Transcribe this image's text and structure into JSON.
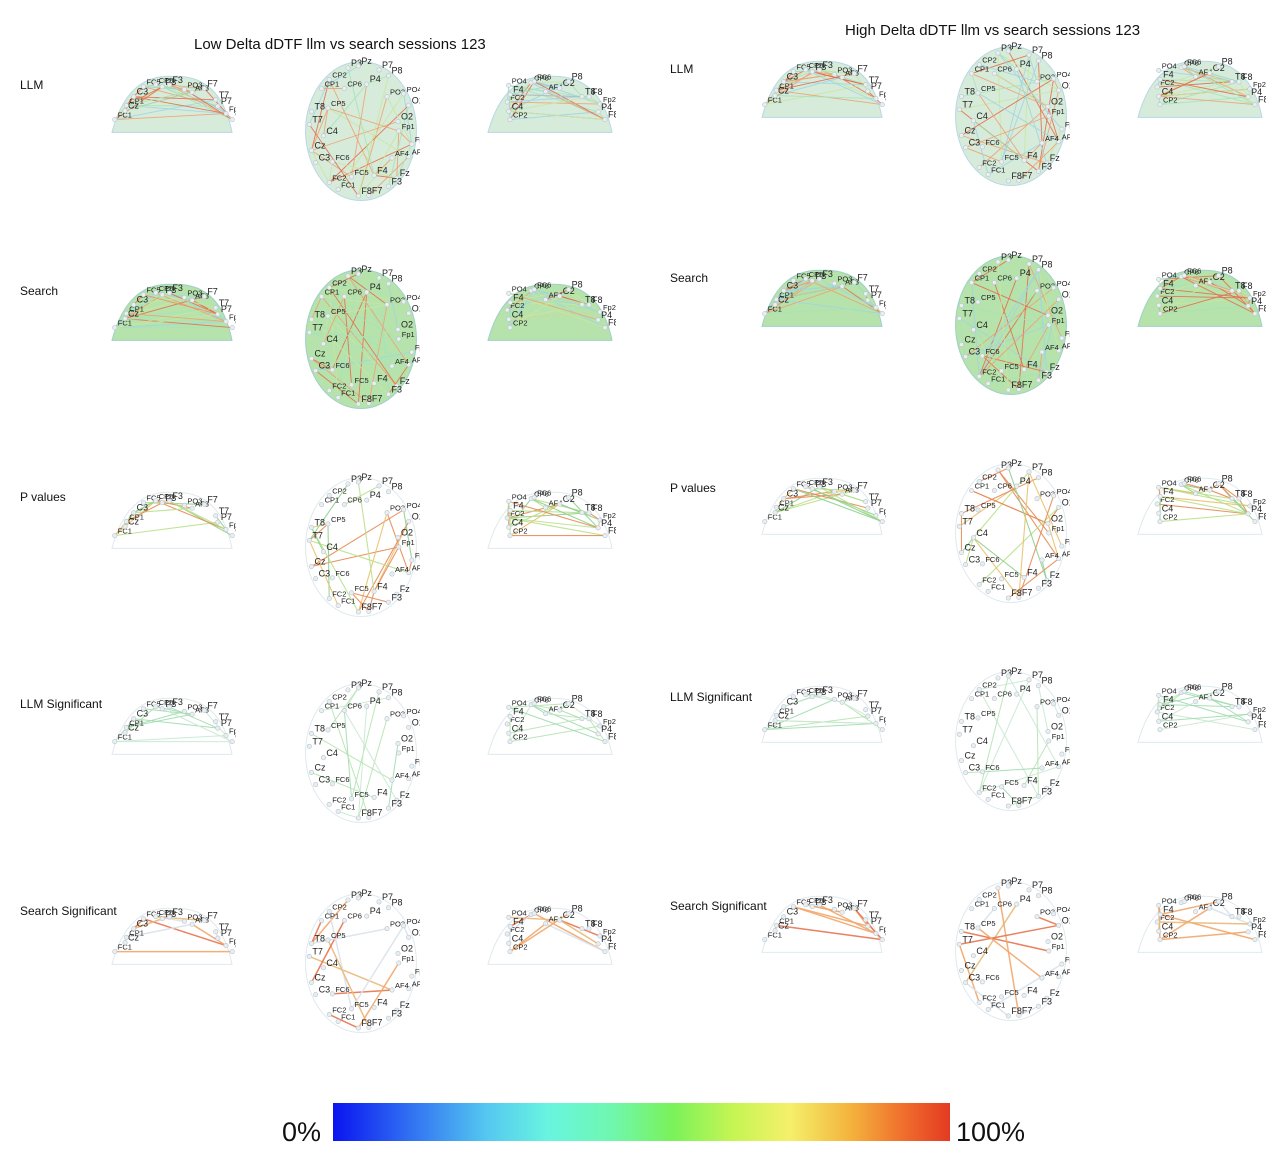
{
  "panels": [
    {
      "title": "Low Delta dDTF llm vs search sessions 123",
      "rows": [
        {
          "label": "LLM",
          "fill": "green-tint",
          "edge_density": "dense"
        },
        {
          "label": "Search",
          "fill": "green",
          "edge_density": "dense"
        },
        {
          "label": "P values",
          "fill": "none",
          "edge_density": "medium"
        },
        {
          "label": "LLM Significant",
          "fill": "none",
          "edge_density": "sparse"
        },
        {
          "label": "Search Significant",
          "fill": "none",
          "edge_density": "sparse-strong"
        }
      ]
    },
    {
      "title": "High Delta dDTF llm vs search sessions 123",
      "rows": [
        {
          "label": "LLM",
          "fill": "green-tint",
          "edge_density": "dense"
        },
        {
          "label": "Search",
          "fill": "green",
          "edge_density": "dense"
        },
        {
          "label": "P values",
          "fill": "none",
          "edge_density": "medium"
        },
        {
          "label": "LLM Significant",
          "fill": "none",
          "edge_density": "sparse"
        },
        {
          "label": "Search Significant",
          "fill": "none",
          "edge_density": "sparse-strong"
        }
      ]
    }
  ],
  "views": {
    "left": [
      "FC1",
      "Cz",
      "CP1",
      "C3",
      "FC5",
      "CP5",
      "P3",
      "F3",
      "PO3",
      "AF3",
      "F7",
      "T7",
      "P7",
      "Fp1",
      "O1"
    ],
    "top": [
      "Fp1",
      "Fp2",
      "AF3",
      "AF4",
      "Fz",
      "F3",
      "F4",
      "F7",
      "F8",
      "FC5",
      "FC1",
      "FC2",
      "FC6",
      "C3",
      "Cz",
      "C4",
      "T7",
      "T8",
      "CP5",
      "CP1",
      "CP2",
      "CP6",
      "P3",
      "Pz",
      "P4",
      "P7",
      "P8",
      "PO3",
      "PO4",
      "O1",
      "O2"
    ],
    "right": [
      "CP2",
      "C4",
      "FC2",
      "F4",
      "PO4",
      "CP6",
      "FC6",
      "AF4",
      "O2",
      "P8",
      "T8",
      "F8",
      "Fp2",
      "P4",
      "F8"
    ]
  },
  "colorbar": {
    "min_label": "0%",
    "max_label": "100%",
    "stops": [
      "#0a14f0",
      "#2f6df2",
      "#55c8f0",
      "#68f5e0",
      "#6ff7b0",
      "#7af25a",
      "#c6f554",
      "#f5f06a",
      "#f4b23c",
      "#ef6a2c",
      "#e33a22"
    ]
  }
}
